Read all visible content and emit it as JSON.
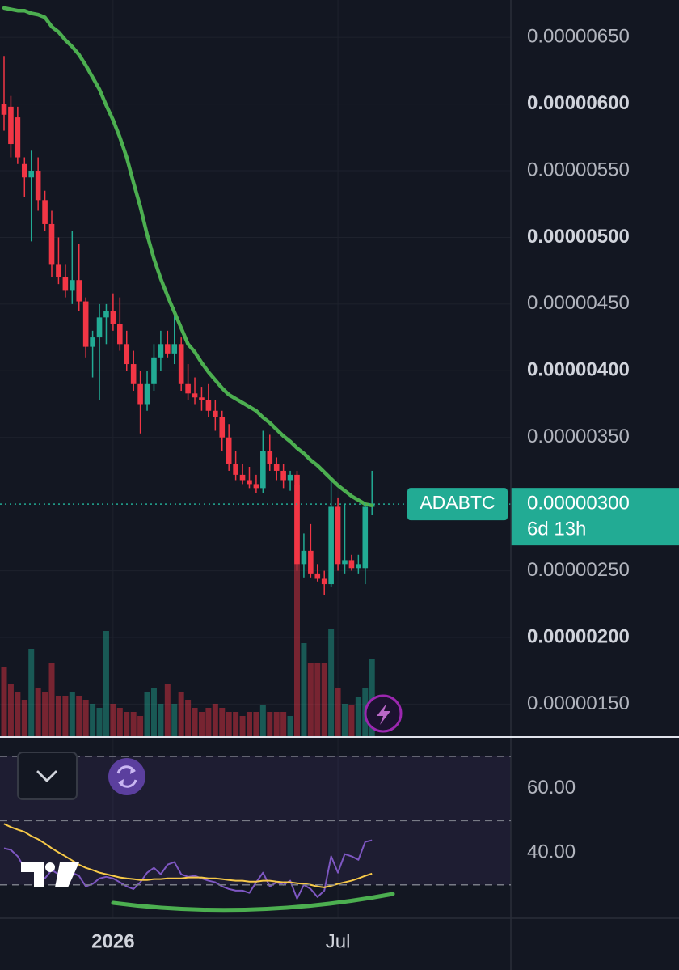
{
  "chart_data": [
    {
      "type": "candlestick",
      "categories": [
        null,
        null,
        null,
        null,
        null,
        null,
        null,
        null,
        null,
        null,
        null,
        null,
        null,
        null,
        null,
        null,
        "2026",
        null,
        null,
        null,
        null,
        null,
        null,
        null,
        null,
        null,
        null,
        null,
        null,
        null,
        null,
        null,
        null,
        null,
        null,
        null,
        null,
        null,
        null,
        null,
        null,
        null,
        null,
        null,
        null,
        null,
        null,
        null,
        null,
        "Jul",
        null,
        null,
        null,
        null,
        null
      ],
      "open": [
        6e-06,
        5.98e-06,
        5.9e-06,
        5.55e-06,
        5.45e-06,
        5.5e-06,
        5.28e-06,
        5.1e-06,
        4.8e-06,
        4.7e-06,
        4.6e-06,
        4.68e-06,
        4.52e-06,
        4.18e-06,
        4.25e-06,
        4.4e-06,
        4.45e-06,
        4.35e-06,
        4.2e-06,
        4.05e-06,
        3.9e-06,
        3.75e-06,
        3.9e-06,
        4.1e-06,
        4.2e-06,
        4.13e-06,
        4.2e-06,
        3.9e-06,
        3.83e-06,
        3.8e-06,
        3.78e-06,
        3.7e-06,
        3.65e-06,
        3.5e-06,
        3.3e-06,
        3.22e-06,
        3.18e-06,
        3.15e-06,
        3.12e-06,
        3.4e-06,
        3.3e-06,
        3.25e-06,
        3.18e-06,
        3.22e-06,
        2.55e-06,
        2.65e-06,
        2.48e-06,
        2.44e-06,
        2.4e-06,
        2.98e-06,
        2.55e-06,
        2.58e-06,
        2.52e-06,
        2.52e-06,
        2.98e-06
      ],
      "high": [
        6.36e-06,
        6.06e-06,
        5.98e-06,
        5.6e-06,
        5.65e-06,
        5.6e-06,
        5.35e-06,
        5.2e-06,
        5e-06,
        4.8e-06,
        5.05e-06,
        4.95e-06,
        4.55e-06,
        4.3e-06,
        4.5e-06,
        4.5e-06,
        4.58e-06,
        4.55e-06,
        4.3e-06,
        4.15e-06,
        4e-06,
        4e-06,
        4.2e-06,
        4.3e-06,
        4.3e-06,
        4.48e-06,
        4.25e-06,
        4.05e-06,
        3.95e-06,
        3.88e-06,
        3.9e-06,
        3.78e-06,
        3.7e-06,
        3.6e-06,
        3.4e-06,
        3.3e-06,
        3.28e-06,
        3.22e-06,
        3.55e-06,
        3.52e-06,
        3.35e-06,
        3.3e-06,
        3.25e-06,
        3.25e-06,
        2.78e-06,
        2.85e-06,
        2.55e-06,
        2.5e-06,
        3.18e-06,
        3.05e-06,
        3e-06,
        2.62e-06,
        2.62e-06,
        3e-06,
        3.25e-06
      ],
      "low": [
        5.8e-06,
        5.6e-06,
        5.55e-06,
        5.3e-06,
        4.97e-06,
        5.2e-06,
        5.05e-06,
        4.7e-06,
        4.65e-06,
        4.55e-06,
        4.5e-06,
        4.45e-06,
        4.1e-06,
        3.95e-06,
        3.78e-06,
        4.2e-06,
        4.3e-06,
        4.15e-06,
        4e-06,
        3.85e-06,
        3.53e-06,
        3.7e-06,
        3.85e-06,
        4e-06,
        4.1e-06,
        4.05e-06,
        3.85e-06,
        3.78e-06,
        3.75e-06,
        3.7e-06,
        3.65e-06,
        3.55e-06,
        3.4e-06,
        3.25e-06,
        3.18e-06,
        3.15e-06,
        3.12e-06,
        3.08e-06,
        3.08e-06,
        3.25e-06,
        3.18e-06,
        3.12e-06,
        3.1e-06,
        2.5e-06,
        2.45e-06,
        2.45e-06,
        2.42e-06,
        2.32e-06,
        2.38e-06,
        2.5e-06,
        2.48e-06,
        2.5e-06,
        2.48e-06,
        2.4e-06,
        2.92e-06
      ],
      "close": [
        5.92e-06,
        5.7e-06,
        5.6e-06,
        5.45e-06,
        5.5e-06,
        5.28e-06,
        5.1e-06,
        4.8e-06,
        4.7e-06,
        4.6e-06,
        4.68e-06,
        4.52e-06,
        4.18e-06,
        4.25e-06,
        4.4e-06,
        4.45e-06,
        4.35e-06,
        4.2e-06,
        4.05e-06,
        3.9e-06,
        3.75e-06,
        3.9e-06,
        4.1e-06,
        4.2e-06,
        4.13e-06,
        4.2e-06,
        3.9e-06,
        3.83e-06,
        3.8e-06,
        3.78e-06,
        3.7e-06,
        3.65e-06,
        3.5e-06,
        3.3e-06,
        3.22e-06,
        3.18e-06,
        3.15e-06,
        3.12e-06,
        3.4e-06,
        3.3e-06,
        3.25e-06,
        3.18e-06,
        3.22e-06,
        2.55e-06,
        2.65e-06,
        2.48e-06,
        2.44e-06,
        2.4e-06,
        2.98e-06,
        2.55e-06,
        2.58e-06,
        2.52e-06,
        2.55e-06,
        2.98e-06,
        3e-06
      ],
      "volume": [
        85,
        65,
        55,
        45,
        108,
        60,
        55,
        90,
        50,
        50,
        55,
        50,
        45,
        40,
        35,
        130,
        40,
        35,
        30,
        30,
        25,
        55,
        60,
        40,
        65,
        40,
        55,
        45,
        35,
        30,
        35,
        40,
        35,
        30,
        30,
        25,
        30,
        30,
        38,
        30,
        30,
        30,
        25,
        310,
        115,
        90,
        90,
        90,
        133,
        60,
        40,
        38,
        48,
        60,
        95
      ],
      "ma": {
        "color": "#4caf50",
        "values": [
          6.72e-06,
          6.71e-06,
          6.7e-06,
          6.7e-06,
          6.68e-06,
          6.67e-06,
          6.65e-06,
          6.58e-06,
          6.54e-06,
          6.48e-06,
          6.43e-06,
          6.37e-06,
          6.29e-06,
          6.2e-06,
          6.11e-06,
          5.99e-06,
          5.88e-06,
          5.75e-06,
          5.6e-06,
          5.41e-06,
          5.23e-06,
          5.02e-06,
          4.84e-06,
          4.69e-06,
          4.56e-06,
          4.44e-06,
          4.32e-06,
          4.2e-06,
          4.14e-06,
          4.06e-06,
          3.99e-06,
          3.93e-06,
          3.87e-06,
          3.82e-06,
          3.79e-06,
          3.76e-06,
          3.73e-06,
          3.7e-06,
          3.65e-06,
          3.61e-06,
          3.56e-06,
          3.51e-06,
          3.47e-06,
          3.42e-06,
          3.38e-06,
          3.33e-06,
          3.29e-06,
          3.24e-06,
          3.19e-06,
          3.14e-06,
          3.1e-06,
          3.06e-06,
          3.03e-06,
          3e-06,
          2.99e-06
        ]
      },
      "up_color": "#22ab94",
      "down_color": "#f23645",
      "ylim": [
        1.26e-06,
        6.78e-06
      ],
      "yticks": [
        {
          "value": 6.5e-06,
          "label": "0.00000650"
        },
        {
          "value": 6e-06,
          "label": "0.00000600"
        },
        {
          "value": 5.5e-06,
          "label": "0.00000550"
        },
        {
          "value": 5e-06,
          "label": "0.00000500"
        },
        {
          "value": 4.5e-06,
          "label": "0.00000450"
        },
        {
          "value": 4e-06,
          "label": "0.00000400"
        },
        {
          "value": 3.5e-06,
          "label": "0.00000350"
        },
        {
          "value": 2.5e-06,
          "label": "0.00000250"
        },
        {
          "value": 2e-06,
          "label": "0.00000200"
        },
        {
          "value": 1.5e-06,
          "label": "0.00000150"
        }
      ],
      "last_price": {
        "symbol": "ADABTC",
        "value": 3e-06,
        "label": "0.00000300",
        "countdown": "6d 13h"
      }
    },
    {
      "type": "line",
      "series": [
        {
          "color": "#7e57c2",
          "values": [
            41.4,
            40.9,
            38.9,
            35.3,
            35.8,
            33.3,
            32,
            34.6,
            33.3,
            32,
            33.8,
            32.8,
            29.5,
            30.3,
            32,
            32.5,
            32,
            30.8,
            29.5,
            28.7,
            30.8,
            33.8,
            35.3,
            33.3,
            36.3,
            37.1,
            33.3,
            32.5,
            32.8,
            32,
            31.3,
            30.8,
            29.5,
            28.7,
            28.2,
            28.2,
            27.5,
            30.8,
            33.8,
            29.5,
            30.8,
            30,
            31.3,
            25.7,
            30,
            28.7,
            26.2,
            28.2,
            38.9,
            33.8,
            39.6,
            38.9,
            37.8,
            43.4,
            43.9
          ]
        },
        {
          "color": "#f7c948",
          "values": [
            49,
            48,
            47.2,
            46.5,
            45.2,
            44.2,
            42.9,
            41.4,
            40.1,
            38.9,
            37.6,
            36.3,
            35.3,
            34.6,
            33.8,
            33.3,
            32.8,
            32.3,
            32,
            31.8,
            31.5,
            31.5,
            31.8,
            31.8,
            32,
            32,
            32,
            32.3,
            32.3,
            32.3,
            32,
            32,
            31.8,
            31.5,
            31.3,
            31.3,
            31,
            31,
            31.3,
            31.3,
            31,
            30.8,
            30.8,
            30.5,
            30.3,
            30,
            29.5,
            29.2,
            29.7,
            30.3,
            30.8,
            31.3,
            32,
            32.8,
            33.5
          ]
        }
      ],
      "levels": [
        70,
        50,
        30
      ],
      "ylim": [
        19.6,
        75.8
      ],
      "yticks": [
        {
          "value": 60,
          "label": "60.00"
        },
        {
          "value": 40,
          "label": "40.00"
        }
      ]
    }
  ]
}
